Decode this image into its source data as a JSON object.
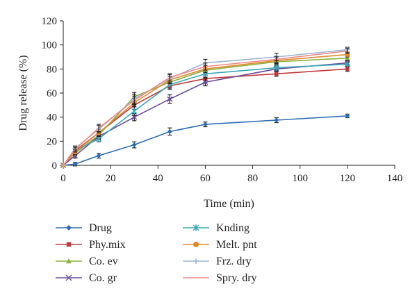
{
  "chart_data": {
    "type": "line",
    "title": "",
    "xlabel": "Time (min)",
    "ylabel": "Drug release (%)",
    "xlim": [
      0,
      140
    ],
    "ylim": [
      0,
      120
    ],
    "x_ticks": [
      0,
      20,
      40,
      60,
      80,
      100,
      120,
      140
    ],
    "y_ticks": [
      0,
      20,
      40,
      60,
      80,
      100,
      120
    ],
    "grid": false,
    "legend_placement": "bottom",
    "x": [
      0,
      5,
      15,
      30,
      45,
      60,
      90,
      120
    ],
    "series": [
      {
        "name": "Drug",
        "color": "#2e6db4",
        "marker": "diamond",
        "values": [
          0,
          1,
          8,
          17,
          28,
          34,
          37.5,
          41
        ],
        "errors": [
          0,
          1.5,
          2,
          2.5,
          3,
          2,
          2,
          1.5
        ]
      },
      {
        "name": "Phy.mix",
        "color": "#c0393b",
        "marker": "square",
        "values": [
          0,
          12,
          27,
          50,
          66,
          72,
          76,
          80
        ],
        "errors": [
          0,
          2,
          3,
          3.5,
          3,
          3,
          2,
          2
        ]
      },
      {
        "name": "Co. ev",
        "color": "#8db03f",
        "marker": "triangle",
        "values": [
          0,
          10,
          25,
          57,
          69,
          79,
          86,
          89
        ],
        "errors": [
          0,
          2,
          3,
          3.5,
          3,
          3,
          2,
          2
        ]
      },
      {
        "name": "Co. gr",
        "color": "#6a4b9c",
        "marker": "x",
        "values": [
          0,
          8,
          24,
          40,
          55,
          69,
          80,
          85
        ],
        "errors": [
          0,
          2,
          2.5,
          3,
          3.5,
          3,
          2,
          2
        ]
      },
      {
        "name": "Knding",
        "color": "#3aa7b9",
        "marker": "asterisk",
        "values": [
          0,
          12,
          22,
          45,
          67,
          76,
          81,
          84
        ],
        "errors": [
          0,
          2,
          2.5,
          3.5,
          3,
          3,
          2,
          2
        ]
      },
      {
        "name": "Melt. pnt",
        "color": "#e08a2c",
        "marker": "circle",
        "values": [
          0,
          11,
          27,
          52,
          71,
          80,
          87,
          92
        ],
        "errors": [
          0,
          2,
          3,
          3.5,
          3,
          3,
          2.5,
          2
        ]
      },
      {
        "name": "Frz. dry",
        "color": "#9db4d4",
        "marker": "plus",
        "values": [
          0,
          14,
          30,
          55,
          72,
          85,
          90,
          96
        ],
        "errors": [
          0,
          2,
          3,
          4,
          3.5,
          3,
          3,
          2
        ]
      },
      {
        "name": "Spry. dry",
        "color": "#f08a86",
        "marker": "none",
        "values": [
          0,
          13,
          31,
          54,
          73,
          82,
          88,
          95
        ],
        "errors": [
          0,
          2,
          3,
          3.5,
          3,
          3,
          2.5,
          2
        ]
      }
    ]
  }
}
